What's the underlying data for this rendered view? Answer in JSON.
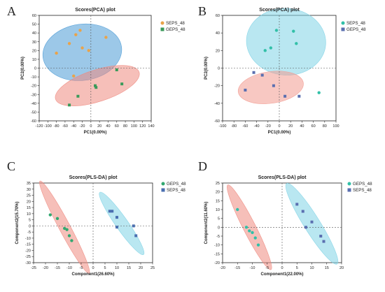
{
  "panel_labels": [
    "A",
    "B",
    "C",
    "D"
  ],
  "colors": {
    "sepia_orange": "#e9a34a",
    "geps_green": "#3a9a5a",
    "teal_point": "#32c0a8",
    "slate_blue": "#5a6fb0",
    "ellipse_blue": "#4a9ad6",
    "ellipse_red": "#ee8a80",
    "ellipse_cyan": "#7fd3e6",
    "ellipse_pink": "#f29a90"
  },
  "chart_data": [
    {
      "type": "scatter",
      "panel": "A",
      "title": "Scores(PCA) plot",
      "xlabel": "PC1(0.00%)",
      "ylabel": "PC2(0.00%)",
      "xlim": [
        -120,
        140
      ],
      "ylim": [
        -60,
        60
      ],
      "xticks": [
        -120,
        -100,
        -80,
        -60,
        -40,
        -20,
        0,
        20,
        40,
        60,
        80,
        100,
        120,
        140
      ],
      "yticks": [
        -60,
        -50,
        -40,
        -30,
        -20,
        -10,
        0,
        10,
        20,
        30,
        40,
        50,
        60
      ],
      "legend_position": "top-right",
      "series": [
        {
          "name": "SEPS_48",
          "marker": "circle",
          "color": "#e9a34a",
          "ellipse_color": "#4a9ad6",
          "ellipse": {
            "cx": -20,
            "cy": 18,
            "rx": 92,
            "ry": 32,
            "angle_deg": 8
          },
          "x": [
            -25,
            -35,
            -80,
            -5,
            -50,
            -20,
            35,
            -40
          ],
          "y": [
            43,
            38,
            17,
            20,
            28,
            23,
            35,
            -9
          ]
        },
        {
          "name": "GEPS_48",
          "marker": "square",
          "color": "#3a9a5a",
          "ellipse_color": "#ee8a80",
          "ellipse": {
            "cx": 15,
            "cy": -20,
            "rx": 102,
            "ry": 18,
            "angle_deg": 18
          },
          "x": [
            -50,
            -30,
            10,
            12,
            60,
            72
          ],
          "y": [
            -42,
            -32,
            -20,
            -22,
            -2,
            -18
          ]
        }
      ]
    },
    {
      "type": "scatter",
      "panel": "B",
      "title": "Scores(PCA) plot",
      "xlabel": "PC1(0.00%)",
      "ylabel": "PC2(0.00%)",
      "xlim": [
        -100,
        100
      ],
      "ylim": [
        -60,
        60
      ],
      "xticks": [
        -100,
        -80,
        -60,
        -40,
        -20,
        0,
        20,
        40,
        60,
        80,
        100
      ],
      "yticks": [
        -60,
        -40,
        -20,
        0,
        20,
        40,
        60
      ],
      "legend_position": "top-right",
      "series": [
        {
          "name": "SEPS_48",
          "marker": "circle",
          "color": "#32c0a8",
          "ellipse_color": "#7fd3e6",
          "ellipse": {
            "cx": 12,
            "cy": 30,
            "rx": 70,
            "ry": 38,
            "angle_deg": -4
          },
          "x": [
            -5,
            25,
            -25,
            -15,
            30,
            70
          ],
          "y": [
            43,
            42,
            20,
            23,
            28,
            -28
          ]
        },
        {
          "name": "GEPS_48",
          "marker": "square",
          "color": "#5a6fb0",
          "ellipse_color": "#f29a90",
          "ellipse": {
            "cx": -15,
            "cy": -22,
            "rx": 58,
            "ry": 18,
            "angle_deg": 8
          },
          "x": [
            -60,
            -45,
            -30,
            -10,
            10,
            35
          ],
          "y": [
            -25,
            -5,
            -8,
            -20,
            -32,
            -32
          ]
        }
      ]
    },
    {
      "type": "scatter",
      "panel": "C",
      "title": "Scores(PLS-DA) plot",
      "xlabel": "Component1(26.60%)",
      "ylabel": "Component2(15.70%)",
      "xlim": [
        -25,
        25
      ],
      "ylim": [
        -30,
        35
      ],
      "xticks": [
        -25,
        -20,
        -15,
        -10,
        -5,
        0,
        5,
        10,
        15,
        20,
        25
      ],
      "yticks": [
        -30,
        -25,
        -20,
        -15,
        -10,
        -5,
        0,
        5,
        10,
        15,
        20,
        25,
        30,
        35
      ],
      "legend_position": "top-right",
      "series": [
        {
          "name": "GEPS_48",
          "marker": "circle",
          "color": "#32a870",
          "ellipse_color": "#ee8a80",
          "ellipse": {
            "cx": -12,
            "cy": -1,
            "rx": 22,
            "ry": 4.5,
            "angle_deg": -62
          },
          "x": [
            -18,
            -15,
            -12,
            -11,
            -10,
            -9
          ],
          "y": [
            9,
            6,
            -2,
            -3,
            -8,
            -12
          ]
        },
        {
          "name": "SEPS_48",
          "marker": "square",
          "color": "#4a6fb0",
          "ellipse_color": "#7fd3e6",
          "ellipse": {
            "cx": 12,
            "cy": 2,
            "rx": 16,
            "ry": 5,
            "angle_deg": -55
          },
          "x": [
            7,
            8,
            10,
            10,
            17,
            18
          ],
          "y": [
            12,
            12,
            7,
            -1,
            0,
            -8
          ]
        }
      ]
    },
    {
      "type": "scatter",
      "panel": "D",
      "title": "Scores(PLS-DA) plot",
      "xlabel": "Component1(22.00%)",
      "ylabel": "Component2(11.60%)",
      "xlim": [
        -20,
        20
      ],
      "ylim": [
        -20,
        25
      ],
      "xticks": [
        -20,
        -15,
        -10,
        -5,
        0,
        5,
        10,
        15,
        20
      ],
      "yticks": [
        -20,
        -15,
        -10,
        -5,
        0,
        5,
        10,
        15,
        20,
        25
      ],
      "legend_position": "top-right",
      "series": [
        {
          "name": "GEPS_48",
          "marker": "circle",
          "color": "#32c0a8",
          "ellipse_color": "#ee8a80",
          "ellipse": {
            "cx": -11,
            "cy": 0,
            "rx": 16,
            "ry": 3.5,
            "angle_deg": -63
          },
          "x": [
            -15,
            -12,
            -11,
            -10,
            -9,
            -8
          ],
          "y": [
            10,
            0,
            -2,
            -3,
            -6,
            -10
          ]
        },
        {
          "name": "SEPS_48",
          "marker": "square",
          "color": "#5a6fb0",
          "ellipse_color": "#7fd3e6",
          "ellipse": {
            "cx": 10,
            "cy": 2,
            "rx": 16,
            "ry": 4.5,
            "angle_deg": -58
          },
          "x": [
            5,
            7,
            8,
            10,
            13,
            14
          ],
          "y": [
            13,
            9,
            0,
            3,
            -5,
            -8
          ]
        }
      ]
    }
  ]
}
